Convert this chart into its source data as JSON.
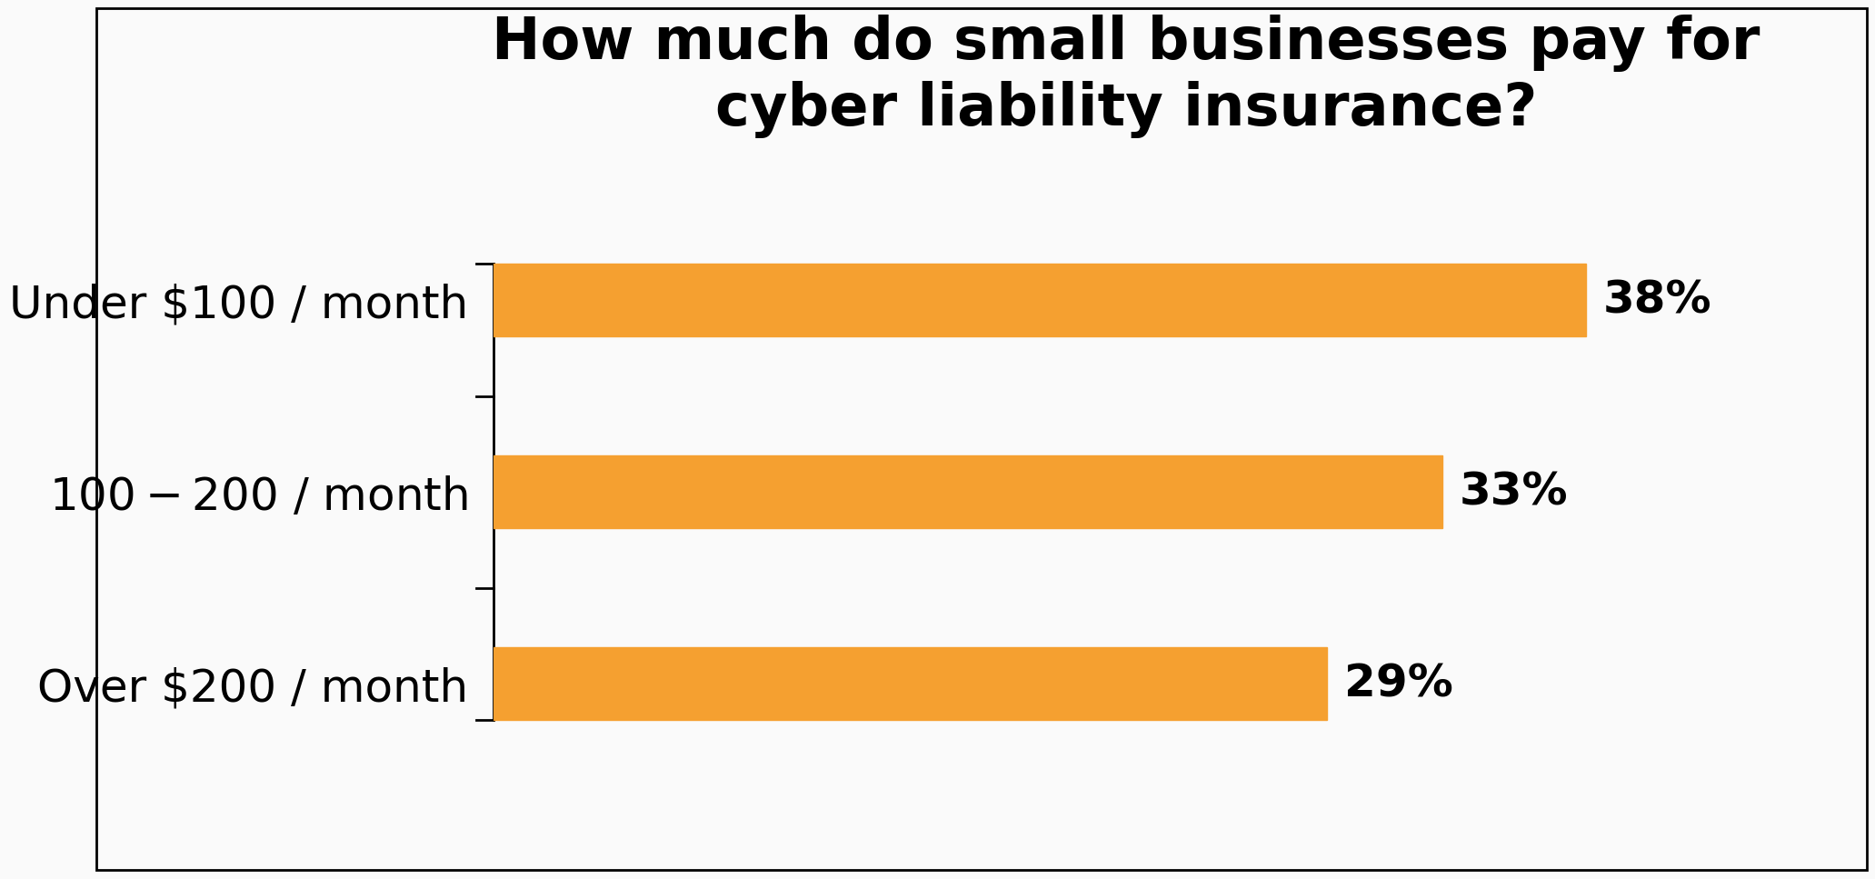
{
  "title": "How much do small businesses pay for\ncyber liability insurance?",
  "categories": [
    "Over $200 / month",
    "$100-$200 / month",
    "Under $100 / month"
  ],
  "values": [
    29,
    33,
    38
  ],
  "labels": [
    "29%",
    "33%",
    "38%"
  ],
  "bar_color": "#F5A030",
  "background_color": "#FAFAFA",
  "title_fontsize": 46,
  "label_fontsize": 36,
  "value_fontsize": 36,
  "xlim": [
    0,
    44
  ],
  "bar_height": 0.38
}
